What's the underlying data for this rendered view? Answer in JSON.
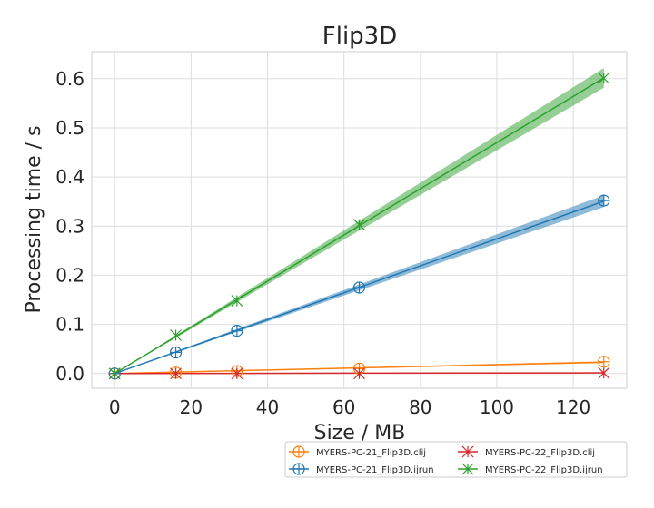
{
  "chart_data": {
    "type": "line",
    "title": "Flip3D",
    "xlabel": "Size / MB",
    "ylabel": "Processing time / s",
    "xlim": [
      -6,
      134
    ],
    "ylim": [
      -0.03,
      0.655
    ],
    "xticks": [
      "0",
      "20",
      "40",
      "60",
      "80",
      "100",
      "120"
    ],
    "yticks": [
      "0.0",
      "0.1",
      "0.2",
      "0.3",
      "0.4",
      "0.5",
      "0.6"
    ],
    "grid": true,
    "legend_position": "below-right",
    "series": [
      {
        "name": "MYERS-PC-21_Flip3D.clij",
        "color": "#ff7f0e",
        "marker": "circle-plus",
        "x": [
          0,
          16,
          32,
          64,
          128
        ],
        "y": [
          0.0,
          0.002,
          0.005,
          0.01,
          0.024
        ],
        "fit": {
          "slope": 0.00018,
          "intercept": 0.0,
          "band": 0.002
        }
      },
      {
        "name": "MYERS-PC-21_Flip3D.ijrun",
        "color": "#1f77b4",
        "marker": "circle-plus",
        "x": [
          0,
          16,
          32,
          64,
          128
        ],
        "y": [
          0.0,
          0.043,
          0.087,
          0.175,
          0.352
        ],
        "fit": {
          "slope": 0.00274,
          "intercept": 0.0,
          "band": 0.012
        }
      },
      {
        "name": "MYERS-PC-22_Flip3D.clij",
        "color": "#d62728",
        "marker": "x-star",
        "x": [
          0,
          16,
          32,
          64,
          128
        ],
        "y": [
          0.0,
          0.0,
          0.0,
          0.0,
          0.001
        ],
        "fit": {
          "slope": 1e-05,
          "intercept": 0.0,
          "band": 0.001
        }
      },
      {
        "name": "MYERS-PC-22_Flip3D.ijrun",
        "color": "#2ca02c",
        "marker": "x-star",
        "x": [
          0,
          16,
          32,
          64,
          128
        ],
        "y": [
          0.0,
          0.078,
          0.148,
          0.303,
          0.601
        ],
        "fit": {
          "slope": 0.0047,
          "intercept": 0.0,
          "band": 0.02
        }
      }
    ]
  }
}
